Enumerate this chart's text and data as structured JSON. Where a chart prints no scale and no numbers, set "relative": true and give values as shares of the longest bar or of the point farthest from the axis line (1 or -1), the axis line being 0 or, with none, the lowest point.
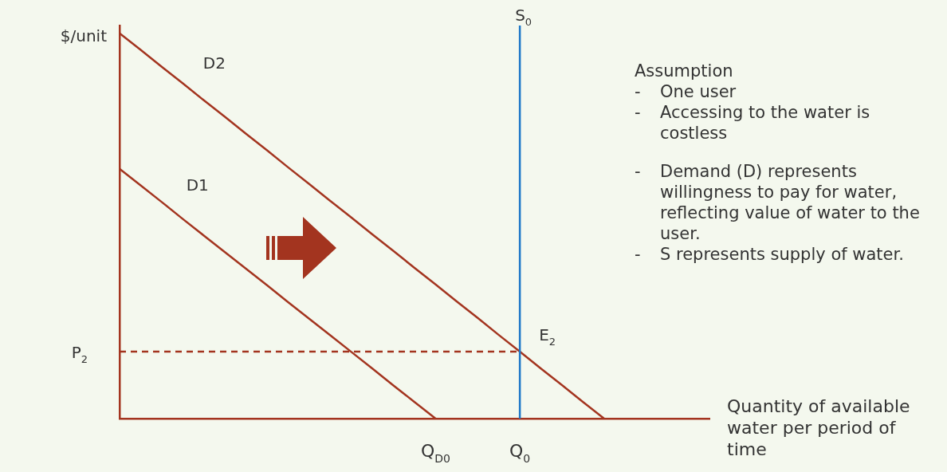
{
  "chart_data": {
    "type": "line",
    "relative": true,
    "ylabel": "$/unit",
    "xlabel": "Quantity of available water per period of time",
    "tick_labels": "x",
    "grid": false,
    "legend": false,
    "marker": "none",
    "categories": [
      null,
      null,
      null,
      null,
      null,
      null,
      null,
      null,
      null,
      null,
      null,
      null,
      null,
      null,
      null,
      "Q$_{D0}$",
      null,
      null,
      null,
      "Q$_{0}$",
      null,
      null,
      null,
      null,
      null,
      null,
      null,
      null,
      null
    ],
    "series": [
      {
        "name": "D2",
        "color": "#a3341f",
        "values": [
          1,
          0.957,
          0.913,
          0.87,
          0.826,
          0.783,
          0.739,
          0.696,
          0.652,
          0.609,
          0.565,
          0.522,
          0.478,
          0.435,
          0.391,
          0.348,
          0.304,
          0.261,
          0.217,
          0.174,
          0.13,
          0.087,
          0.043,
          0,
          null,
          null,
          null,
          null,
          null
        ]
      },
      {
        "name": "D1",
        "color": "#a3341f",
        "values": [
          0.648,
          0.605,
          0.562,
          0.518,
          0.475,
          0.432,
          0.389,
          0.346,
          0.302,
          0.259,
          0.216,
          0.173,
          0.13,
          0.086,
          0.043,
          0,
          null,
          null,
          null,
          null,
          null,
          null,
          null,
          null,
          null,
          null,
          null,
          null,
          null
        ]
      },
      {
        "name": "P$_{2}$",
        "color": "#a3341f",
        "line_style": "dashed",
        "values": [
          0.174,
          0.174,
          0.174,
          0.174,
          0.174,
          0.174,
          0.174,
          0.174,
          0.174,
          0.174,
          0.174,
          0.174,
          0.174,
          0.174,
          0.174,
          0.174,
          0.174,
          0.174,
          0.174,
          0.174,
          null,
          null,
          null,
          null,
          null,
          null,
          null,
          null,
          null
        ]
      }
    ],
    "ref_lines": [
      {
        "axis": "x",
        "value": "Q$_{0}$",
        "label": "S$_{0}$",
        "color": "#1e78c8"
      }
    ],
    "annotations": [
      {
        "text": "E$_{2}$",
        "x": "Q$_{0}$",
        "y": 0.174
      },
      "Assumption",
      "- One user",
      "- Accessing to the water is costless",
      "- Demand (D) represents willingness to pay for water, reflecting value of water to the user.",
      "- S represents supply of water."
    ]
  }
}
